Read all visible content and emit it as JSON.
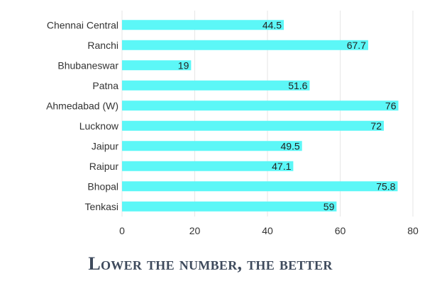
{
  "chart_data": {
    "type": "bar",
    "orientation": "horizontal",
    "categories": [
      "Chennai Central",
      "Ranchi",
      "Bhubaneswar",
      "Patna",
      "Ahmedabad (W)",
      "Lucknow",
      "Jaipur",
      "Raipur",
      "Bhopal",
      "Tenkasi"
    ],
    "values": [
      44.5,
      67.7,
      19,
      51.6,
      76,
      72,
      49.5,
      47.1,
      75.8,
      59
    ],
    "value_labels": [
      "44.5",
      "67.7",
      "19",
      "51.6",
      "76",
      "72",
      "49.5",
      "47.1",
      "75.8",
      "59"
    ],
    "xlim": [
      0,
      80
    ],
    "x_ticks": [
      "0",
      "20",
      "40",
      "60",
      "80"
    ],
    "x_tick_values": [
      0,
      20,
      40,
      60,
      80
    ],
    "grid": true,
    "bar_color": "#5cf7f7",
    "caption": "Lower the number, the better"
  }
}
